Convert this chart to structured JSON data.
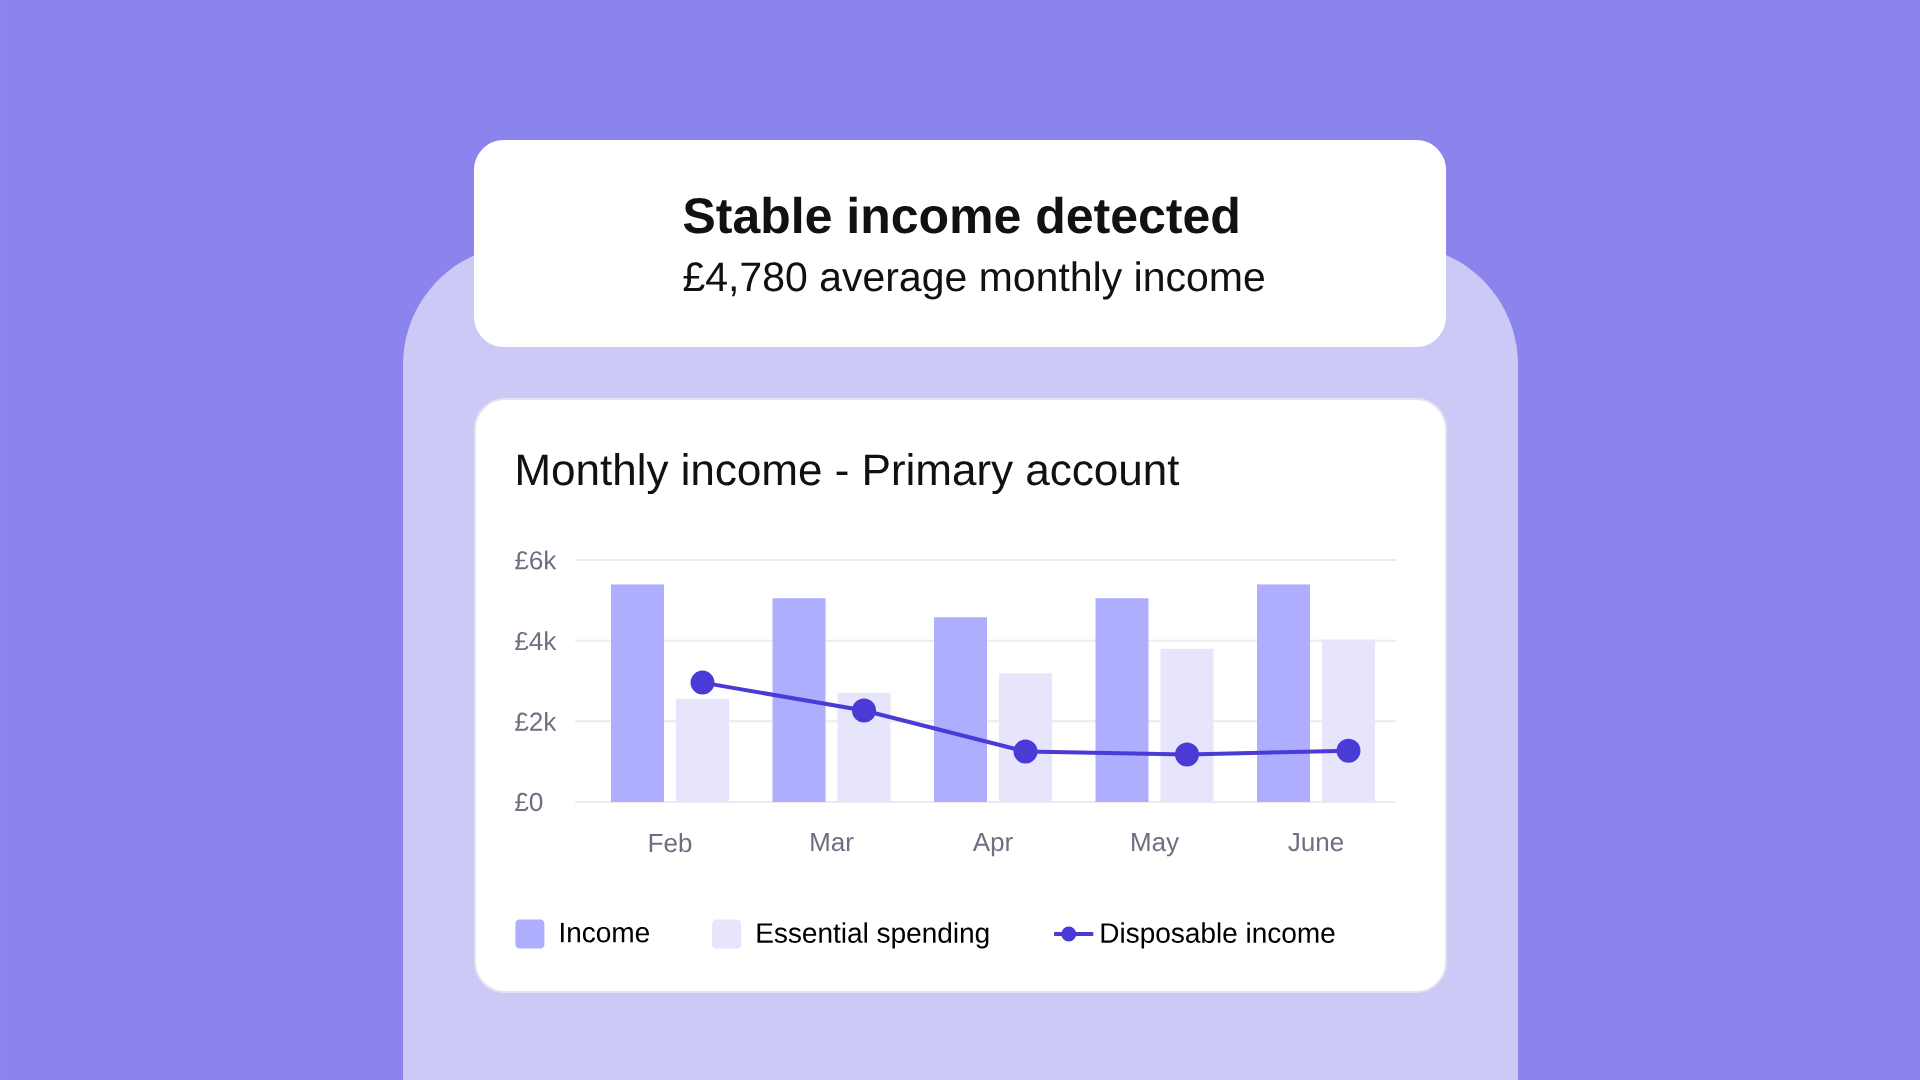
{
  "chart_data": {
    "type": "bar",
    "title": "Monthly income - Primary account",
    "annotations": [
      "Stable income detected",
      "£4,780 average monthly income"
    ],
    "categories": [
      "Feb",
      "Mar",
      "Apr",
      "May",
      "June"
    ],
    "series": [
      {
        "name": "Income",
        "color": "#afadfe",
        "values": [
          5400,
          5050,
          4580,
          5050,
          5400
        ]
      },
      {
        "name": "Essential spending",
        "color": "#e6e5fc",
        "values": [
          2560,
          2710,
          3190,
          3800,
          4030
        ]
      },
      {
        "name": "Disposable income",
        "type": "line",
        "color": "#4b3bd6",
        "values": [
          2960,
          2270,
          1250,
          1180,
          1270
        ]
      }
    ],
    "ylim": [
      0,
      6000
    ],
    "yticks": [
      {
        "value": 0,
        "label": "£0"
      },
      {
        "value": 2000,
        "label": "£2k"
      },
      {
        "value": 4000,
        "label": "£4k"
      },
      {
        "value": 6000,
        "label": "£6k"
      }
    ],
    "grid": "y",
    "legend": "bottom",
    "marker": "circle",
    "line_style": "solid"
  }
}
